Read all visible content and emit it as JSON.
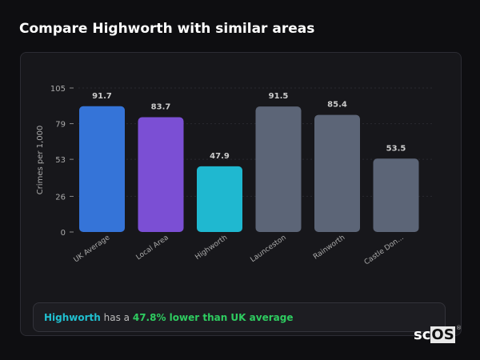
{
  "title": "Compare Highworth with similar areas",
  "chart_data": {
    "type": "bar",
    "ylabel": "Crimes per 1,000",
    "ylim": [
      0,
      105
    ],
    "yticks": [
      0,
      26,
      53,
      79,
      105
    ],
    "grid": true,
    "categories": [
      "UK Average",
      "Local Area",
      "Highworth",
      "Launceston",
      "Rainworth",
      "Castle Don..."
    ],
    "values": [
      91.7,
      83.7,
      47.9,
      91.5,
      85.4,
      53.5
    ],
    "colors": [
      "#3574d8",
      "#7b4fd4",
      "#1fb8d0",
      "#5c6577",
      "#5c6577",
      "#5c6577"
    ]
  },
  "info": {
    "place": "Highworth",
    "middle": " has a ",
    "stat": "47.8% lower than UK average"
  },
  "logo": {
    "text_a": "sc",
    "text_b": "OS",
    "reg": "®"
  }
}
